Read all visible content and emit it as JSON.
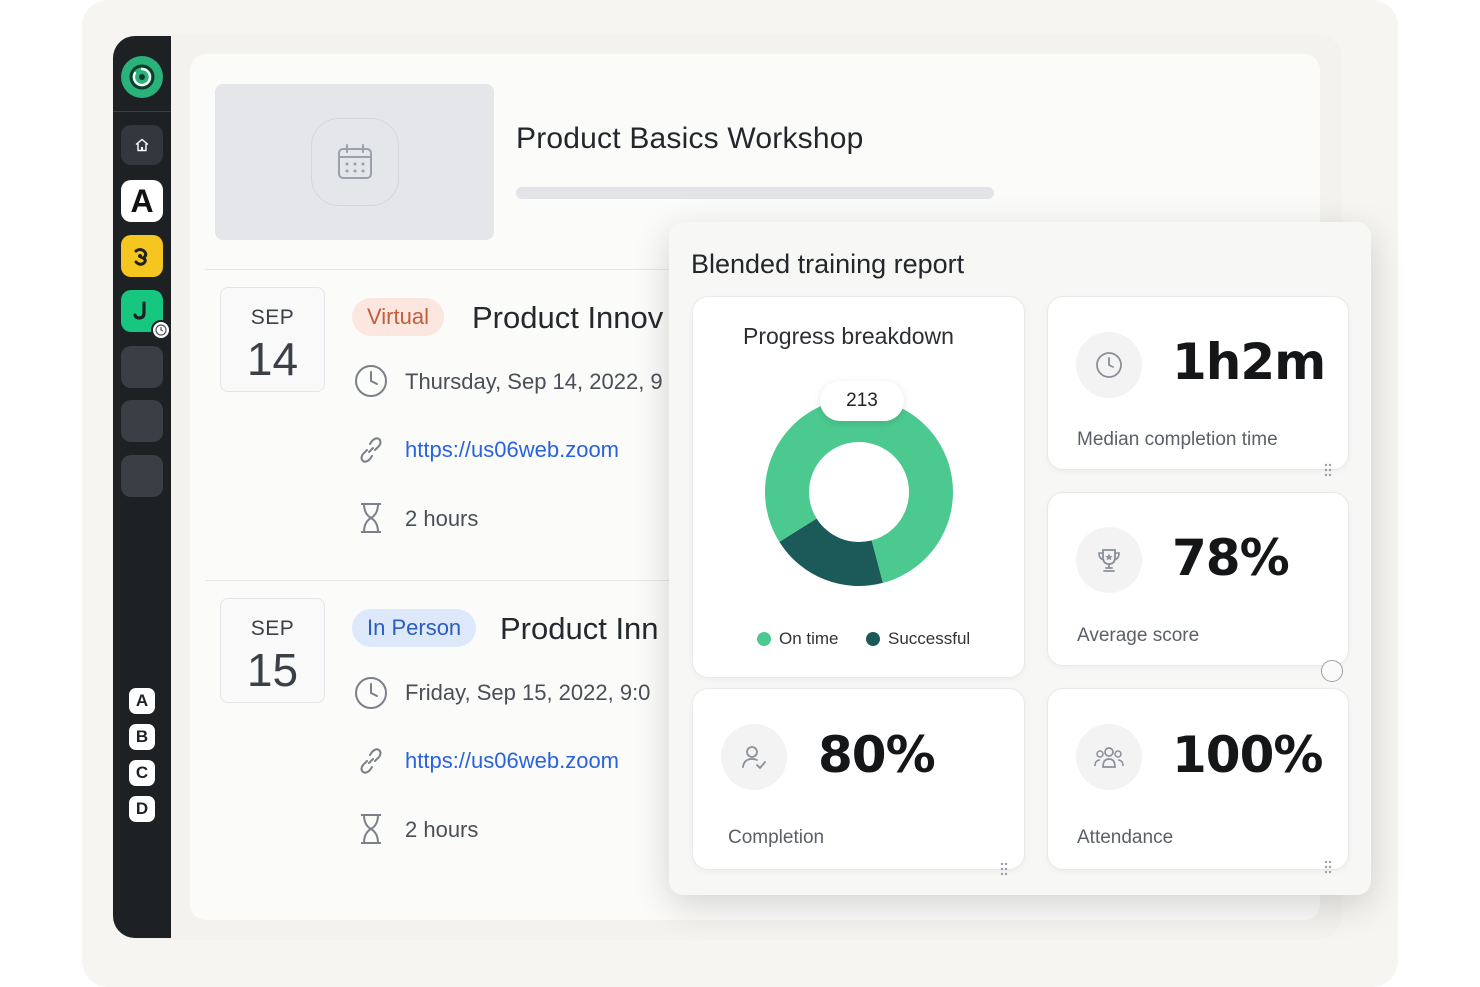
{
  "workshop": {
    "title": "Product Basics Workshop"
  },
  "sidebar": {
    "app_letter": "A",
    "letters": [
      "A",
      "B",
      "C",
      "D"
    ]
  },
  "events": [
    {
      "month": "SEP",
      "day": "14",
      "tag": "Virtual",
      "title": "Product Innov",
      "datetime": "Thursday, Sep 14, 2022, 9",
      "link": "https://us06web.zoom",
      "duration": "2 hours"
    },
    {
      "month": "SEP",
      "day": "15",
      "tag": "In Person",
      "title": "Product Inn",
      "datetime": "Friday, Sep 15, 2022, 9:0",
      "link": "https://us06web.zoom",
      "duration": "2 hours"
    }
  ],
  "report": {
    "title": "Blended training report",
    "progress": {
      "title": "Progress breakdown",
      "total": "213",
      "legend": [
        "On time",
        "Successful"
      ]
    },
    "metrics": {
      "median_completion": {
        "value": "1h2m",
        "label": "Median completion time"
      },
      "average_score": {
        "value": "78%",
        "label": "Average score"
      },
      "completion": {
        "value": "80%",
        "label": "Completion"
      },
      "attendance": {
        "value": "100%",
        "label": "Attendance"
      }
    }
  },
  "chart_data": {
    "type": "pie",
    "title": "Progress breakdown",
    "total": 213,
    "categories": [
      "On time",
      "Successful"
    ],
    "values": [
      170,
      43
    ],
    "colors": [
      "#4cc98f",
      "#1c5a5a"
    ]
  },
  "colors": {
    "sidebar_bg": "#1e2124",
    "brand_green": "#2ab27b",
    "virtual_tag": "#c0603b",
    "in_person_tag": "#2b5dbf",
    "link": "#2962e0"
  }
}
